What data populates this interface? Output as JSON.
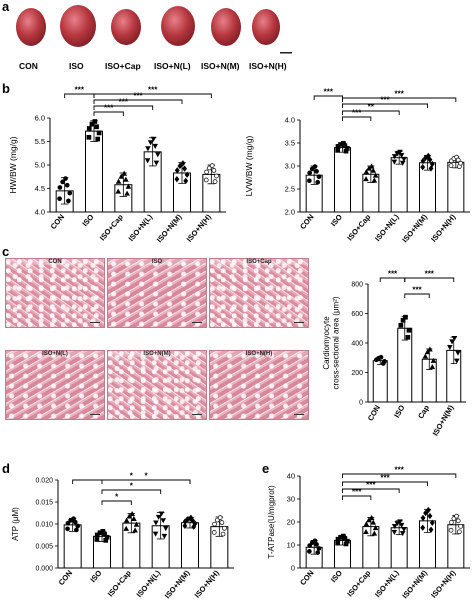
{
  "panels": {
    "a": "a",
    "b": "b",
    "c": "c",
    "d": "d",
    "e": "e"
  },
  "hearts": [
    "CON",
    "ISO",
    "ISO+Cap",
    "ISO+N(L)",
    "ISO+N(M)",
    "ISO+N(H)"
  ],
  "micrographs": [
    "CON",
    "ISO",
    "ISO+Cap",
    "ISO+N(L)",
    "ISO+N(M)",
    "ISO+N(H)"
  ],
  "colors": {
    "heart": "#b6373f",
    "tissue": "#e3a1b0",
    "axis": "#000000"
  },
  "chart_data": [
    {
      "id": "hwbw",
      "type": "bar",
      "ylabel": "HW/BW (mg/g)",
      "ylim": [
        4.0,
        6.0
      ],
      "yticks": [
        4.0,
        4.5,
        5.0,
        5.5,
        6.0
      ],
      "ytick_labels": [
        "4.0",
        "4.5",
        "5.0",
        "5.5",
        "6.0"
      ],
      "categories": [
        "CON",
        "ISO",
        "ISO+Cap",
        "ISO+N(L)",
        "ISO+N(M)",
        "ISO+N(H)"
      ],
      "values": [
        4.45,
        5.72,
        4.58,
        5.28,
        4.83,
        4.8
      ],
      "errors": [
        0.28,
        0.22,
        0.25,
        0.3,
        0.22,
        0.2
      ],
      "markers": [
        "circle",
        "square",
        "triangle",
        "invtriangle",
        "diamond",
        "opencircle"
      ],
      "significance": [
        "***",
        "***",
        "***",
        "***",
        "***"
      ]
    },
    {
      "id": "lwbw",
      "type": "bar",
      "ylabel": "LVW/BW (mg/g)",
      "ylim": [
        2.0,
        4.0
      ],
      "yticks": [
        2.0,
        2.5,
        3.0,
        3.5,
        4.0
      ],
      "ytick_labels": [
        "2.0",
        "2.5",
        "3.0",
        "3.5",
        "4.0"
      ],
      "categories": [
        "CON",
        "ISO",
        "ISO+Cap",
        "ISO+N(L)",
        "ISO+N(M)",
        "ISO+N(H)"
      ],
      "values": [
        2.8,
        3.4,
        2.82,
        3.18,
        3.07,
        3.08
      ],
      "errors": [
        0.2,
        0.1,
        0.18,
        0.14,
        0.16,
        0.12
      ],
      "markers": [
        "circle",
        "square",
        "triangle",
        "invtriangle",
        "diamond",
        "opencircle"
      ],
      "significance": [
        "***",
        "***",
        "**",
        "***",
        "***"
      ]
    },
    {
      "id": "csa",
      "type": "bar",
      "ylabel": "Cardiomyocyte cross-sectional area (μm²)",
      "ylim": [
        0,
        800
      ],
      "yticks": [
        0,
        200,
        400,
        600,
        800
      ],
      "ytick_labels": [
        "0",
        "200",
        "400",
        "600",
        "800"
      ],
      "categories": [
        "CON",
        "ISO",
        "Cap",
        "ISO+N(M)"
      ],
      "values": [
        280,
        500,
        290,
        350
      ],
      "errors": [
        25,
        80,
        70,
        90
      ],
      "markers": [
        "circle",
        "square",
        "triangle",
        "invtriangle"
      ],
      "significance": [
        "***",
        "***",
        "***"
      ]
    },
    {
      "id": "atp",
      "type": "bar",
      "ylabel": "ATP (μM)",
      "ylim": [
        0,
        0.02
      ],
      "yticks": [
        0,
        0.005,
        0.01,
        0.015,
        0.02
      ],
      "ytick_labels": [
        "0.000",
        "0.005",
        "0.010",
        "0.015",
        "0.020"
      ],
      "categories": [
        "CON",
        "ISO",
        "ISO+Cap",
        "ISO+N(L)",
        "ISO+N(M)",
        "ISO+N(H)"
      ],
      "values": [
        0.0098,
        0.0072,
        0.0102,
        0.0096,
        0.0103,
        0.0094
      ],
      "errors": [
        0.0015,
        0.0012,
        0.0022,
        0.003,
        0.0012,
        0.0022
      ],
      "markers": [
        "circle",
        "square",
        "triangle",
        "invtriangle",
        "diamond",
        "opencircle"
      ],
      "significance": [
        "*",
        "*",
        "*",
        "*"
      ]
    },
    {
      "id": "tatp",
      "type": "bar",
      "ylabel": "T-ATPase(U/mgprot)",
      "ylim": [
        0,
        40
      ],
      "yticks": [
        0,
        10,
        20,
        30,
        40
      ],
      "ytick_labels": [
        "0",
        "10",
        "20",
        "30",
        "40"
      ],
      "categories": [
        "CON",
        "ISO",
        "ISO+Cap",
        "ISO+N(L)",
        "ISO+N(M)",
        "ISO+N(H)"
      ],
      "values": [
        9,
        12,
        18,
        17.5,
        20.5,
        18.8
      ],
      "errors": [
        3,
        2,
        4,
        3,
        5,
        4
      ],
      "markers": [
        "circle",
        "square",
        "triangle",
        "invtriangle",
        "diamond",
        "opencircle"
      ],
      "significance": [
        "***",
        "***",
        "***",
        "***"
      ]
    }
  ]
}
